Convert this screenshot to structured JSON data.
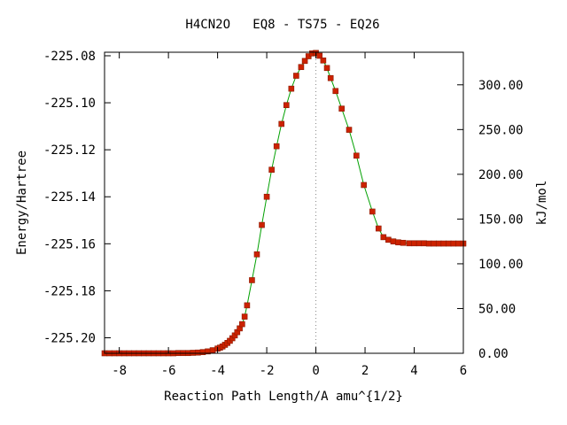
{
  "chart_data": {
    "type": "line",
    "title": "H4CN2O   EQ8 - TS75 - EQ26",
    "xlabel": "Reaction Path Length/A amu^{1/2}",
    "ylabel": "Energy/Hartree",
    "y2label": "kJ/mol",
    "xlim": [
      -8.6,
      6.0
    ],
    "ylim": [
      -225.2066,
      -225.0785
    ],
    "y2lim": [
      0.0,
      336.4
    ],
    "x_ticks": [
      -8,
      -6,
      -4,
      -2,
      0,
      2,
      4,
      6
    ],
    "x_tick_labels": [
      "-8",
      "-6",
      "-4",
      "-2",
      "0",
      "2",
      "4",
      "6"
    ],
    "y_ticks": [
      -225.08,
      -225.1,
      -225.12,
      -225.14,
      -225.16,
      -225.18,
      -225.2
    ],
    "y_tick_labels": [
      "-225.08",
      "-225.10",
      "-225.12",
      "-225.14",
      "-225.16",
      "-225.18",
      "-225.20"
    ],
    "y2_ticks": [
      0,
      50,
      100,
      150,
      200,
      250,
      300
    ],
    "y2_tick_labels": [
      "0.00",
      "50.00",
      "100.00",
      "150.00",
      "200.00",
      "250.00",
      "300.00"
    ],
    "ts_marker_x": 0,
    "grid": false,
    "colors": {
      "line": "#00a000",
      "marker": "#cc2200",
      "ts_line": "#888888"
    },
    "series": [
      {
        "x": [
          -8.6,
          -8.4,
          -8.2,
          -8.0,
          -7.8,
          -7.6,
          -7.4,
          -7.2,
          -7.0,
          -6.8,
          -6.6,
          -6.4,
          -6.2,
          -6.0,
          -5.8,
          -5.6,
          -5.4,
          -5.2,
          -5.0,
          -4.8,
          -4.6,
          -4.4,
          -4.2,
          -4.0,
          -3.9,
          -3.8,
          -3.7,
          -3.6,
          -3.5,
          -3.4,
          -3.3,
          -3.2,
          -3.1,
          -3.0,
          -2.9,
          -2.8,
          -2.6,
          -2.4,
          -2.2,
          -2.0,
          -1.8,
          -1.6,
          -1.4,
          -1.2,
          -1.0,
          -0.8,
          -0.6,
          -0.45,
          -0.3,
          -0.15,
          0.0,
          0.15,
          0.3,
          0.45,
          0.6,
          0.8,
          1.05,
          1.35,
          1.65,
          1.95,
          2.3,
          2.55,
          2.75,
          2.95,
          3.15,
          3.35,
          3.55,
          3.8,
          4.0,
          4.2,
          4.4,
          4.6,
          4.8,
          5.0,
          5.2,
          5.4,
          5.6,
          5.8,
          6.0
        ],
        "y": [
          -225.2066,
          -225.2066,
          -225.2066,
          -225.2066,
          -225.2066,
          -225.2066,
          -225.2066,
          -225.2066,
          -225.2066,
          -225.2066,
          -225.2066,
          -225.2066,
          -225.2066,
          -225.2066,
          -225.2066,
          -225.2065,
          -225.2065,
          -225.2065,
          -225.2064,
          -225.2063,
          -225.2061,
          -225.2058,
          -225.2053,
          -225.2046,
          -225.2042,
          -225.2037,
          -225.203,
          -225.2022,
          -225.2013,
          -225.2002,
          -225.199,
          -225.1976,
          -225.196,
          -225.1942,
          -225.191,
          -225.1862,
          -225.1755,
          -225.1645,
          -225.152,
          -225.14,
          -225.1285,
          -225.1185,
          -225.109,
          -225.101,
          -225.094,
          -225.0885,
          -225.0848,
          -225.0822,
          -225.0802,
          -225.079,
          -225.0788,
          -225.08,
          -225.082,
          -225.0852,
          -225.0895,
          -225.095,
          -225.1025,
          -225.1115,
          -225.1225,
          -225.135,
          -225.1463,
          -225.1535,
          -225.1572,
          -225.1583,
          -225.159,
          -225.1594,
          -225.1596,
          -225.1598,
          -225.1598,
          -225.1598,
          -225.1598,
          -225.1599,
          -225.1599,
          -225.1599,
          -225.1599,
          -225.1599,
          -225.1599,
          -225.1599,
          -225.1599
        ]
      }
    ]
  }
}
